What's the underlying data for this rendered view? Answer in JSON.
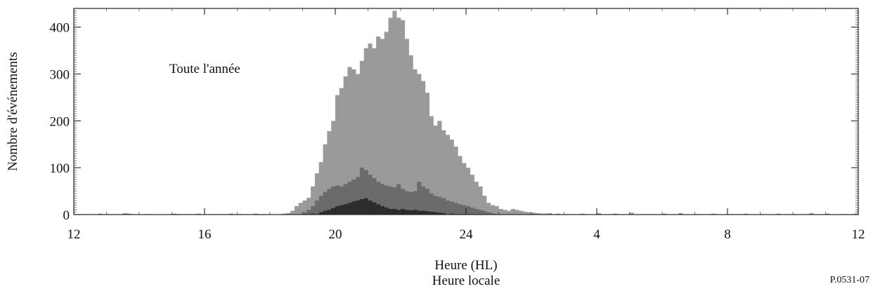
{
  "chart_data": {
    "type": "bar",
    "annotation": "Toute l'année",
    "ylabel": "Nombre d'événements",
    "xlabel": "Heure (HL)",
    "xlabel_sub": "Heure locale",
    "figure_id": "P.0531-07",
    "x_ticks": [
      {
        "hour": 12,
        "label": "12"
      },
      {
        "hour": 16,
        "label": "16"
      },
      {
        "hour": 20,
        "label": "20"
      },
      {
        "hour": 24,
        "label": "24"
      },
      {
        "hour": 28,
        "label": "4"
      },
      {
        "hour": 32,
        "label": "8"
      },
      {
        "hour": 36,
        "label": "12"
      }
    ],
    "y_ticks": [
      0,
      100,
      200,
      300,
      400
    ],
    "xlim": [
      12,
      36
    ],
    "ylim": [
      0,
      440
    ],
    "bin_width_hours": 0.125,
    "grid": false,
    "series": [
      {
        "color": "#9a9a9a",
        "points": [
          [
            12.75,
            2
          ],
          [
            13.0,
            1
          ],
          [
            13.5,
            3
          ],
          [
            13.625,
            2
          ],
          [
            14.25,
            1
          ],
          [
            15.0,
            2
          ],
          [
            15.125,
            1
          ],
          [
            15.75,
            2
          ],
          [
            16.25,
            1
          ],
          [
            16.75,
            2
          ],
          [
            17.0,
            1
          ],
          [
            17.5,
            2
          ],
          [
            17.75,
            1
          ],
          [
            18.375,
            2
          ],
          [
            18.5,
            3
          ],
          [
            18.625,
            8
          ],
          [
            18.75,
            18
          ],
          [
            18.875,
            25
          ],
          [
            19.0,
            30
          ],
          [
            19.125,
            36
          ],
          [
            19.25,
            60
          ],
          [
            19.375,
            88
          ],
          [
            19.5,
            112
          ],
          [
            19.625,
            150
          ],
          [
            19.75,
            178
          ],
          [
            19.875,
            200
          ],
          [
            20.0,
            255
          ],
          [
            20.125,
            270
          ],
          [
            20.25,
            295
          ],
          [
            20.375,
            315
          ],
          [
            20.5,
            310
          ],
          [
            20.625,
            300
          ],
          [
            20.75,
            328
          ],
          [
            20.875,
            355
          ],
          [
            21.0,
            365
          ],
          [
            21.125,
            355
          ],
          [
            21.25,
            380
          ],
          [
            21.375,
            375
          ],
          [
            21.5,
            390
          ],
          [
            21.625,
            420
          ],
          [
            21.75,
            435
          ],
          [
            21.875,
            420
          ],
          [
            22.0,
            415
          ],
          [
            22.125,
            375
          ],
          [
            22.25,
            340
          ],
          [
            22.375,
            310
          ],
          [
            22.5,
            300
          ],
          [
            22.625,
            285
          ],
          [
            22.75,
            260
          ],
          [
            22.875,
            210
          ],
          [
            23.0,
            190
          ],
          [
            23.125,
            200
          ],
          [
            23.25,
            180
          ],
          [
            23.375,
            170
          ],
          [
            23.5,
            160
          ],
          [
            23.625,
            145
          ],
          [
            23.75,
            125
          ],
          [
            23.875,
            110
          ],
          [
            24.0,
            100
          ],
          [
            24.125,
            85
          ],
          [
            24.25,
            70
          ],
          [
            24.375,
            60
          ],
          [
            24.5,
            40
          ],
          [
            24.625,
            25
          ],
          [
            24.75,
            20
          ],
          [
            24.875,
            18
          ],
          [
            25.0,
            12
          ],
          [
            25.125,
            10
          ],
          [
            25.25,
            8
          ],
          [
            25.375,
            12
          ],
          [
            25.5,
            10
          ],
          [
            25.625,
            8
          ],
          [
            25.75,
            6
          ],
          [
            25.875,
            5
          ],
          [
            26.0,
            4
          ],
          [
            26.125,
            3
          ],
          [
            26.25,
            2
          ],
          [
            26.375,
            2
          ],
          [
            26.5,
            3
          ],
          [
            26.75,
            2
          ],
          [
            27.0,
            1
          ],
          [
            27.5,
            2
          ],
          [
            28.0,
            3
          ],
          [
            28.5,
            2
          ],
          [
            29.0,
            4
          ],
          [
            29.5,
            1
          ],
          [
            30.0,
            2
          ],
          [
            30.5,
            3
          ],
          [
            31.0,
            1
          ],
          [
            31.5,
            2
          ],
          [
            32.0,
            1
          ],
          [
            32.5,
            2
          ],
          [
            33.0,
            1
          ],
          [
            33.5,
            2
          ],
          [
            34.0,
            1
          ],
          [
            34.5,
            3
          ],
          [
            35.0,
            2
          ],
          [
            35.5,
            1
          ],
          [
            35.875,
            2
          ]
        ]
      },
      {
        "color": "#6b6b6b",
        "points": [
          [
            19.0,
            5
          ],
          [
            19.125,
            10
          ],
          [
            19.25,
            18
          ],
          [
            19.375,
            30
          ],
          [
            19.5,
            40
          ],
          [
            19.625,
            48
          ],
          [
            19.75,
            55
          ],
          [
            19.875,
            60
          ],
          [
            20.0,
            62
          ],
          [
            20.125,
            60
          ],
          [
            20.25,
            65
          ],
          [
            20.375,
            70
          ],
          [
            20.5,
            75
          ],
          [
            20.625,
            80
          ],
          [
            20.75,
            100
          ],
          [
            20.875,
            95
          ],
          [
            21.0,
            85
          ],
          [
            21.125,
            78
          ],
          [
            21.25,
            70
          ],
          [
            21.375,
            65
          ],
          [
            21.5,
            62
          ],
          [
            21.625,
            60
          ],
          [
            21.75,
            58
          ],
          [
            21.875,
            65
          ],
          [
            22.0,
            55
          ],
          [
            22.125,
            50
          ],
          [
            22.25,
            48
          ],
          [
            22.375,
            50
          ],
          [
            22.5,
            70
          ],
          [
            22.625,
            60
          ],
          [
            22.75,
            55
          ],
          [
            22.875,
            45
          ],
          [
            23.0,
            40
          ],
          [
            23.125,
            38
          ],
          [
            23.25,
            35
          ],
          [
            23.375,
            30
          ],
          [
            23.5,
            28
          ],
          [
            23.625,
            25
          ],
          [
            23.75,
            22
          ],
          [
            23.875,
            20
          ],
          [
            24.0,
            18
          ],
          [
            24.125,
            15
          ],
          [
            24.25,
            12
          ],
          [
            24.375,
            10
          ],
          [
            24.5,
            8
          ],
          [
            24.625,
            5
          ],
          [
            24.75,
            3
          ]
        ]
      },
      {
        "color": "#2d2d2d",
        "points": [
          [
            19.25,
            2
          ],
          [
            19.5,
            5
          ],
          [
            19.625,
            8
          ],
          [
            19.75,
            10
          ],
          [
            19.875,
            14
          ],
          [
            20.0,
            18
          ],
          [
            20.125,
            20
          ],
          [
            20.25,
            22
          ],
          [
            20.375,
            25
          ],
          [
            20.5,
            28
          ],
          [
            20.625,
            30
          ],
          [
            20.75,
            33
          ],
          [
            20.875,
            35
          ],
          [
            21.0,
            30
          ],
          [
            21.125,
            26
          ],
          [
            21.25,
            22
          ],
          [
            21.375,
            18
          ],
          [
            21.5,
            15
          ],
          [
            21.625,
            12
          ],
          [
            21.75,
            12
          ],
          [
            21.875,
            10
          ],
          [
            22.0,
            12
          ],
          [
            22.125,
            10
          ],
          [
            22.25,
            9
          ],
          [
            22.375,
            10
          ],
          [
            22.5,
            8
          ],
          [
            22.625,
            8
          ],
          [
            22.75,
            7
          ],
          [
            22.875,
            6
          ],
          [
            23.0,
            5
          ],
          [
            23.125,
            4
          ],
          [
            23.25,
            3
          ],
          [
            23.5,
            2
          ],
          [
            23.75,
            1
          ]
        ]
      }
    ]
  }
}
